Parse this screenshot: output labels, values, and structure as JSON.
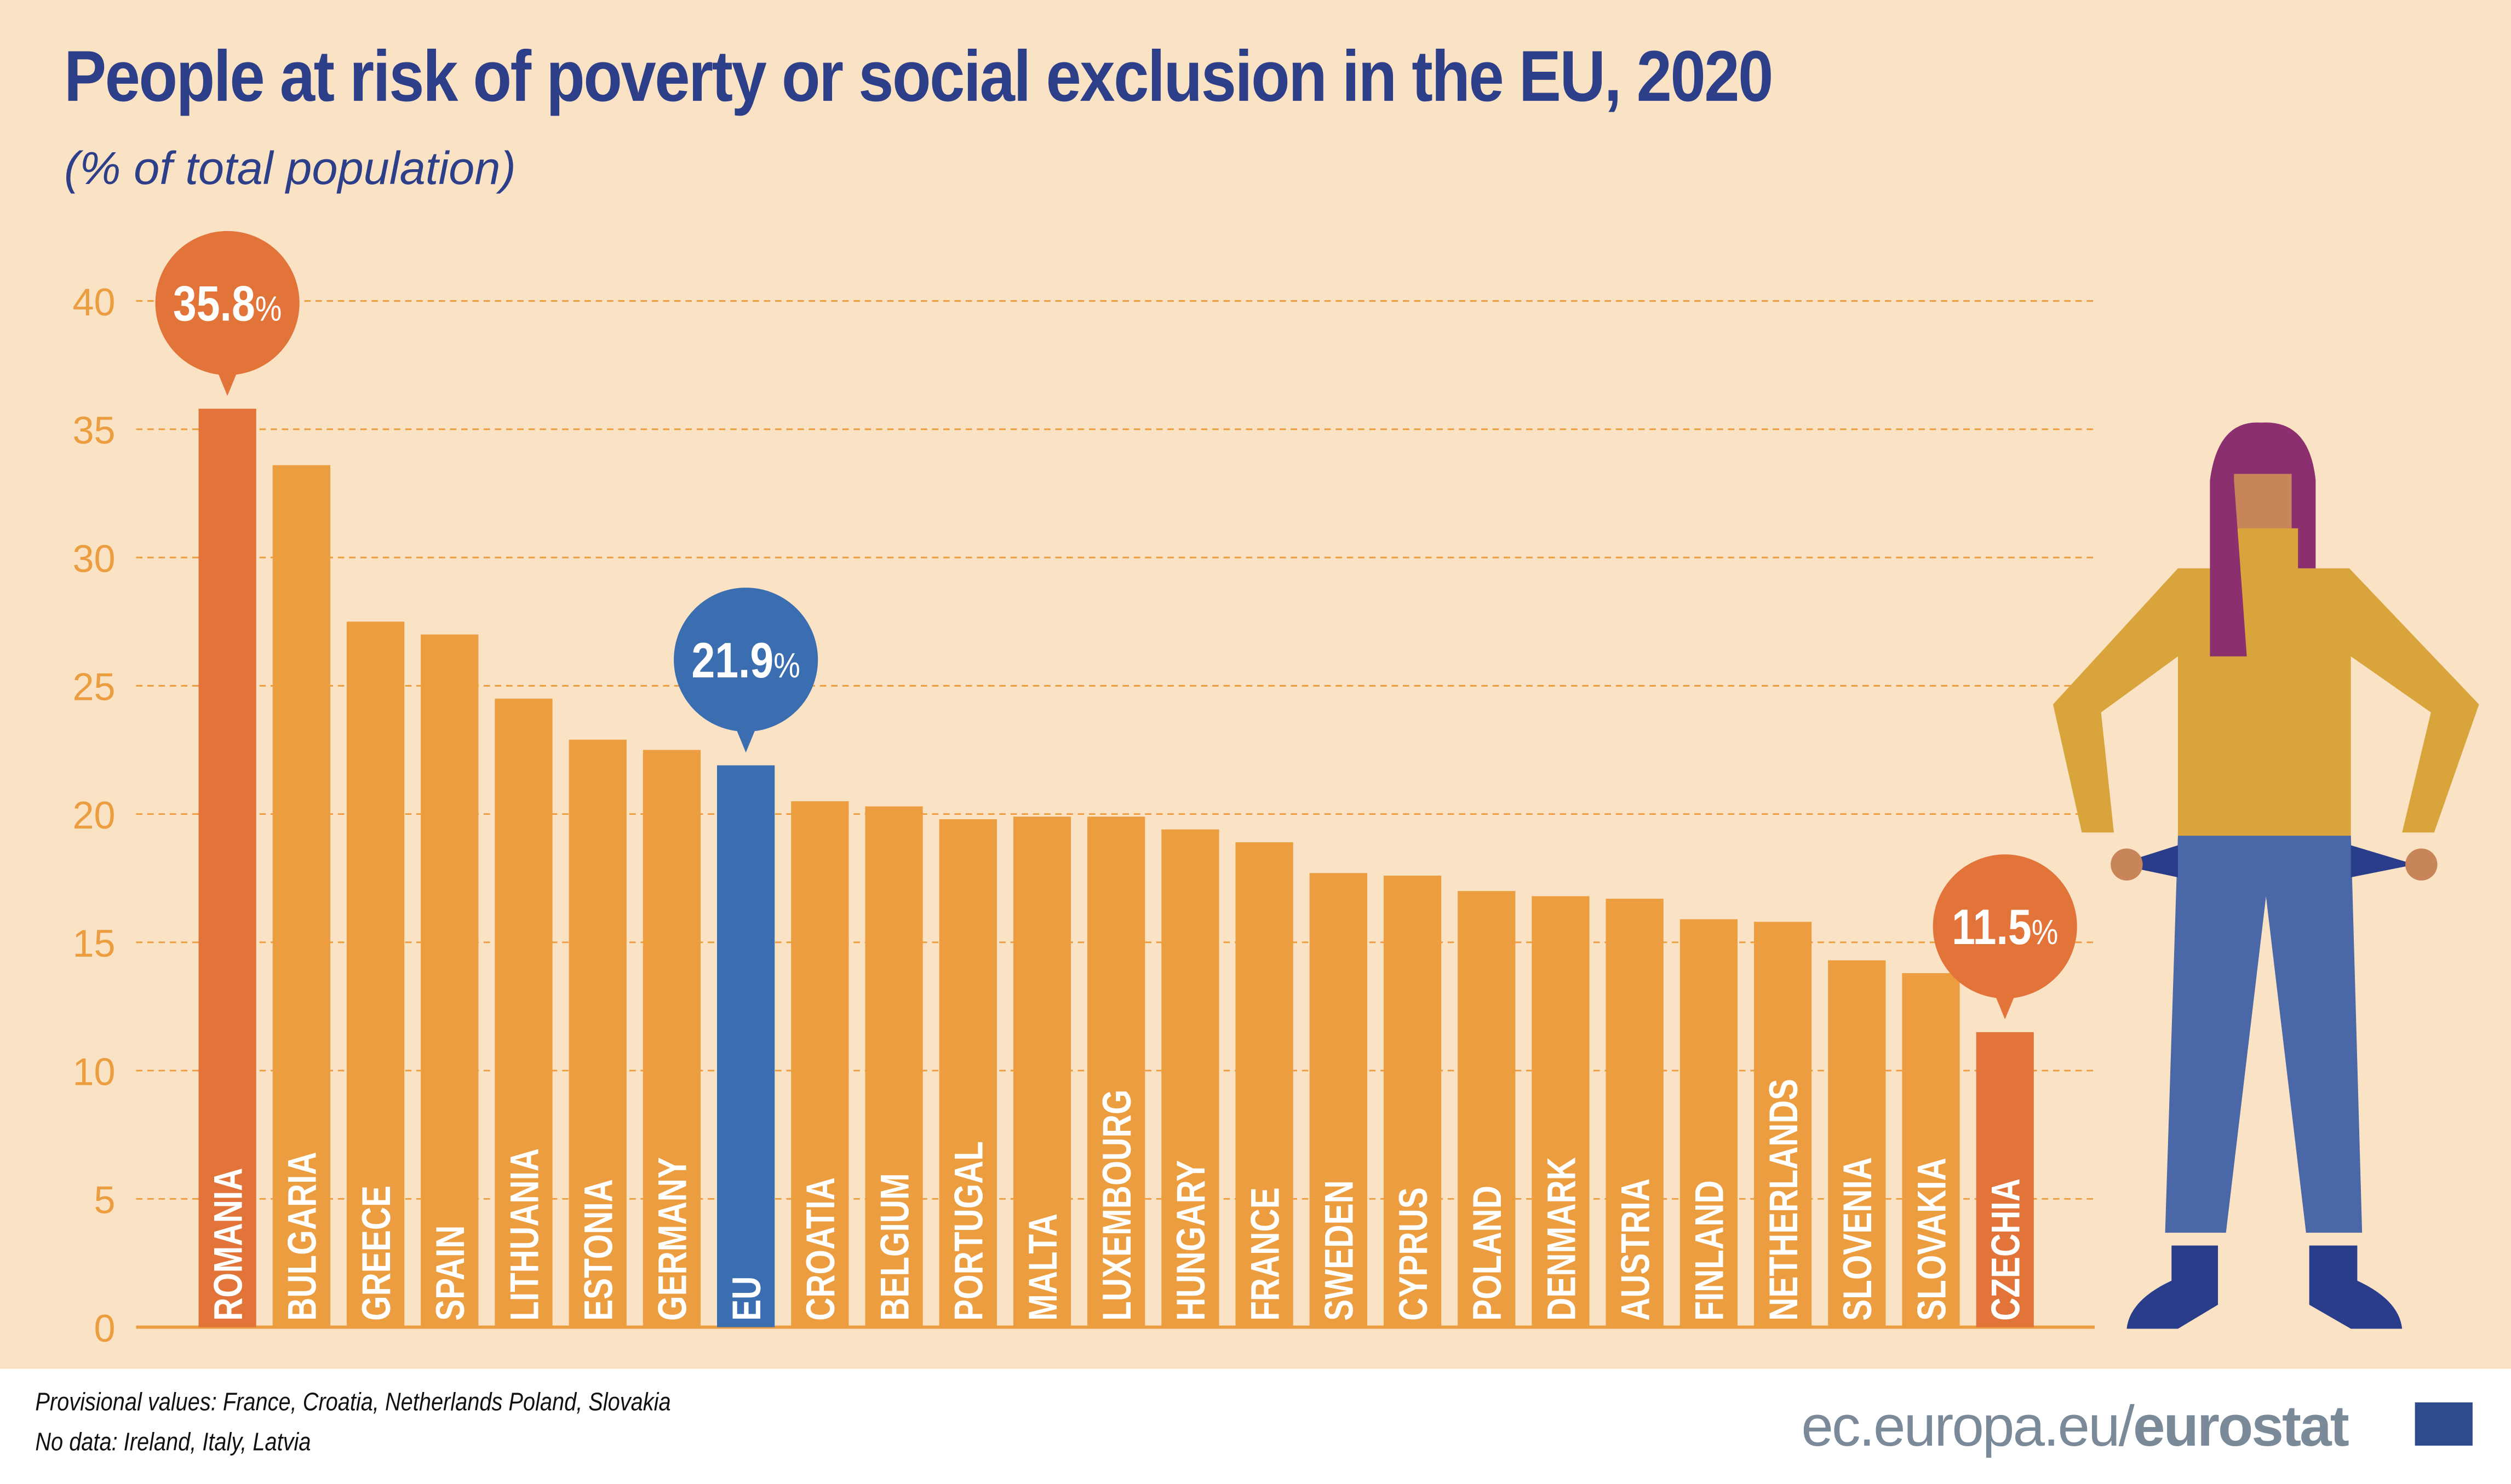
{
  "title": "People at risk of poverty or social exclusion in the EU, 2020",
  "subtitle": "(% of total population)",
  "footer": {
    "provisional": "Provisional values: France, Croatia, Netherlands Poland,  Slovakia",
    "no_data": "No data: Ireland, Italy, Latvia"
  },
  "brand": {
    "site": "ec.europa.eu/",
    "name": "eurostat"
  },
  "colors": {
    "bar": "#eb9d3f",
    "highlight_high_low": "#e2743a",
    "eu": "#3a6eb0",
    "background": "#fae3c5",
    "title": "#2e3f8a"
  },
  "chart_data": {
    "type": "bar",
    "title": "People at risk of poverty or social exclusion in the EU, 2020",
    "ylabel": "(% of total population)",
    "ylim": [
      0,
      40
    ],
    "yticks": [
      "0",
      "5",
      "10",
      "15",
      "20",
      "25",
      "30",
      "35",
      "40"
    ],
    "grid": true,
    "categories": [
      "ROMANIA",
      "BULGARIA",
      "GREECE",
      "SPAIN",
      "LITHUANIA",
      "ESTONIA",
      "GERMANY",
      "EU",
      "CROATIA",
      "BELGIUM",
      "PORTUGAL",
      "MALTA",
      "LUXEMBOURG",
      "HUNGARY",
      "FRANCE",
      "SWEDEN",
      "CYPRUS",
      "POLAND",
      "DENMARK",
      "AUSTRIA",
      "FINLAND",
      "NETHERLANDS",
      "SLOVENIA",
      "SLOVAKIA",
      "CZECHIA"
    ],
    "values": [
      35.8,
      33.6,
      27.5,
      27.0,
      24.5,
      22.9,
      22.5,
      21.9,
      20.5,
      20.3,
      19.8,
      19.9,
      19.9,
      19.4,
      18.9,
      17.7,
      17.6,
      17.0,
      16.8,
      16.7,
      15.9,
      15.8,
      14.3,
      13.8,
      11.5
    ],
    "highlight": {
      "ROMANIA": "high",
      "EU": "eu",
      "CZECHIA": "low"
    },
    "callouts": [
      {
        "category": "ROMANIA",
        "label": "35.8",
        "unit": "%"
      },
      {
        "category": "EU",
        "label": "21.9",
        "unit": "%"
      },
      {
        "category": "CZECHIA",
        "label": "11.5",
        "unit": "%"
      }
    ]
  }
}
